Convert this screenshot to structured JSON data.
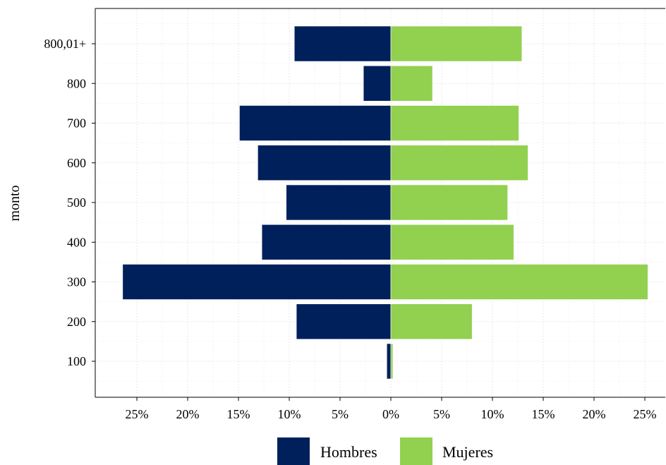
{
  "chart_data": {
    "type": "bar",
    "orientation": "horizontal",
    "layout": "population-pyramid",
    "ylabel": "monto",
    "xlabel": "",
    "categories": [
      "100",
      "200",
      "300",
      "400",
      "500",
      "600",
      "700",
      "800",
      "800,01+"
    ],
    "series": [
      {
        "name": "Hombres",
        "color": "#00205b",
        "side": "left",
        "values": [
          0.4,
          9.3,
          26.4,
          12.7,
          10.3,
          13.1,
          14.9,
          2.7,
          9.5
        ]
      },
      {
        "name": "Mujeres",
        "color": "#92d050",
        "side": "right",
        "values": [
          0.2,
          8.0,
          25.3,
          12.1,
          11.5,
          13.5,
          12.6,
          4.1,
          12.9
        ]
      }
    ],
    "xlim": [
      -28.5,
      27.5
    ],
    "xticks": [
      -25,
      -20,
      -15,
      -10,
      -5,
      0,
      5,
      10,
      15,
      20,
      25
    ],
    "xtick_labels": [
      "25%",
      "20%",
      "15%",
      "10%",
      "5%",
      "0%",
      "5%",
      "10%",
      "15%",
      "20%",
      "25%"
    ],
    "grid": true,
    "legend_position": "bottom"
  }
}
